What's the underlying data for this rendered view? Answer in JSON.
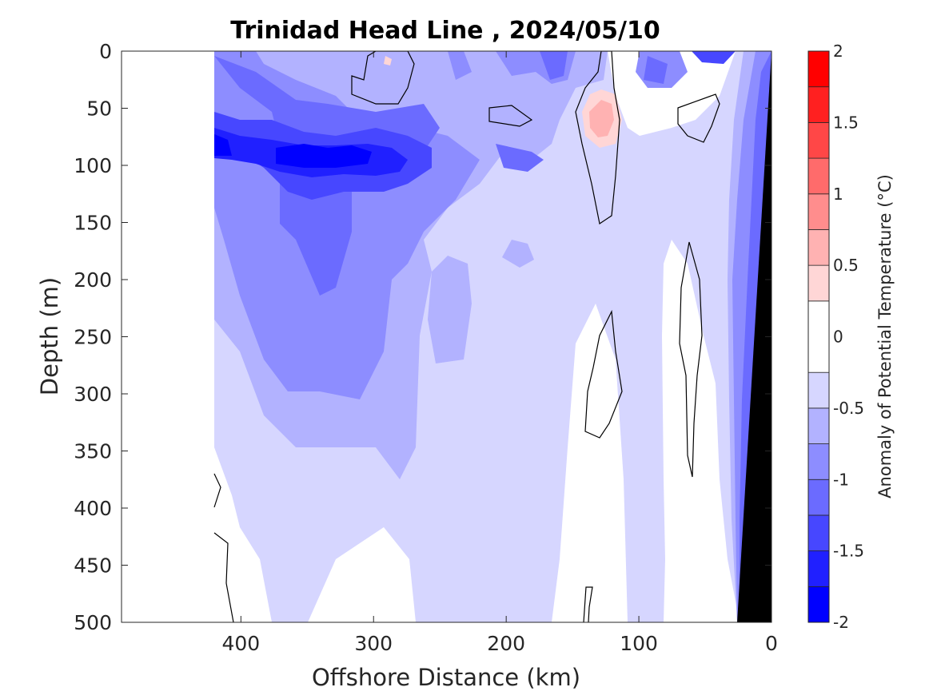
{
  "chart_data": {
    "type": "heatmap",
    "subtype": "filled-contour section",
    "title": "Trinidad Head Line , 2024/05/10",
    "xlabel": "Offshore Distance (km)",
    "ylabel": "Depth (m)",
    "colorbar_label": "Anomaly of Potential Temperature (°C)",
    "xlim": [
      490,
      0
    ],
    "x_direction": "reversed",
    "ylim": [
      500,
      0
    ],
    "y_direction": "reversed",
    "x_ticks": [
      "400",
      "300",
      "200",
      "100",
      "0"
    ],
    "y_ticks": [
      "0",
      "50",
      "100",
      "150",
      "200",
      "250",
      "300",
      "350",
      "400",
      "450",
      "500"
    ],
    "colorbar_ticks": [
      "2",
      "1.5",
      "1",
      "0.5",
      "0",
      "-0.5",
      "-1",
      "-1.5",
      "-2"
    ],
    "clim": [
      -2,
      2
    ],
    "levels": [
      -2,
      -1.75,
      -1.5,
      -1.25,
      -1,
      -0.75,
      -0.5,
      -0.25,
      0.25,
      0.5,
      0.75,
      1,
      1.25,
      1.5,
      1.75,
      2
    ],
    "level_colors": [
      "#0000ff",
      "#2020ff",
      "#4747ff",
      "#6b6bff",
      "#8d8dff",
      "#b2b2ff",
      "#d6d6ff",
      "#ffffff",
      "#ffd6d6",
      "#ffb2b2",
      "#ff8d8d",
      "#ff6b6b",
      "#ff4747",
      "#ff2020",
      "#ff0000"
    ],
    "data_extent_x_km": [
      420,
      0
    ],
    "bathymetry_color": "#000000",
    "features": [
      {
        "name": "cold core",
        "x_km": [
          420,
          250
        ],
        "depth_m": [
          60,
          130
        ],
        "anomaly": -1.75
      },
      {
        "name": "subsurface cold water",
        "x_km": [
          420,
          260
        ],
        "depth_m": [
          130,
          300
        ],
        "anomaly": -1.0
      },
      {
        "name": "warm patch",
        "x_km": [
          135,
          115
        ],
        "depth_m": [
          40,
          80
        ],
        "anomaly": 0.6
      },
      {
        "name": "coastal cold band",
        "x_km": [
          30,
          0
        ],
        "depth_m": [
          0,
          500
        ],
        "anomaly": -1.0
      }
    ]
  }
}
